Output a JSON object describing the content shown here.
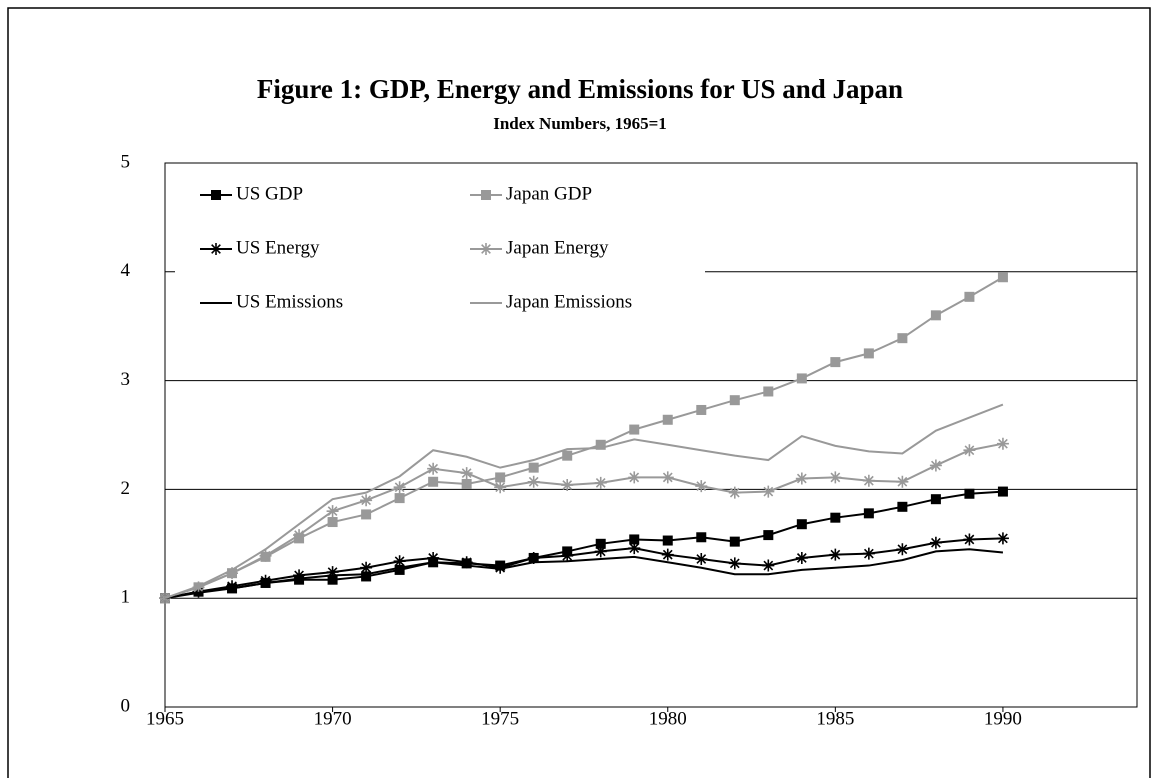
{
  "chart_data": {
    "type": "line",
    "title": "Figure 1: GDP, Energy and Emissions for US and Japan",
    "subtitle": "Index Numbers, 1965=1",
    "x": [
      1965,
      1966,
      1967,
      1968,
      1969,
      1970,
      1971,
      1972,
      1973,
      1974,
      1975,
      1976,
      1977,
      1978,
      1979,
      1980,
      1981,
      1982,
      1983,
      1984,
      1985,
      1986,
      1987,
      1988,
      1989,
      1990
    ],
    "xlim": [
      1965,
      1994
    ],
    "xticks": [
      1965,
      1970,
      1975,
      1980,
      1985,
      1990
    ],
    "ylim": [
      0,
      5
    ],
    "yticks": [
      0,
      1,
      2,
      3,
      4,
      5
    ],
    "grid": true,
    "legend": "top-left",
    "series": [
      {
        "name": "US GDP",
        "color": "#000000",
        "marker": "square",
        "values": [
          1.0,
          1.06,
          1.09,
          1.14,
          1.17,
          1.17,
          1.2,
          1.26,
          1.33,
          1.32,
          1.3,
          1.37,
          1.43,
          1.5,
          1.54,
          1.53,
          1.56,
          1.52,
          1.58,
          1.68,
          1.74,
          1.78,
          1.84,
          1.91,
          1.96,
          1.98
        ]
      },
      {
        "name": "Japan GDP",
        "color": "#999999",
        "marker": "square",
        "values": [
          1.0,
          1.1,
          1.23,
          1.38,
          1.55,
          1.7,
          1.77,
          1.92,
          2.07,
          2.05,
          2.11,
          2.2,
          2.31,
          2.41,
          2.55,
          2.64,
          2.73,
          2.82,
          2.9,
          3.02,
          3.17,
          3.25,
          3.39,
          3.6,
          3.77,
          3.95
        ]
      },
      {
        "name": "US Energy",
        "color": "#000000",
        "marker": "star",
        "values": [
          1.0,
          1.06,
          1.11,
          1.16,
          1.21,
          1.24,
          1.28,
          1.34,
          1.37,
          1.33,
          1.28,
          1.37,
          1.39,
          1.43,
          1.46,
          1.4,
          1.36,
          1.32,
          1.3,
          1.37,
          1.4,
          1.41,
          1.45,
          1.51,
          1.54,
          1.55
        ]
      },
      {
        "name": "Japan Energy",
        "color": "#999999",
        "marker": "star",
        "values": [
          1.0,
          1.1,
          1.23,
          1.39,
          1.58,
          1.8,
          1.9,
          2.02,
          2.19,
          2.15,
          2.02,
          2.07,
          2.04,
          2.06,
          2.11,
          2.11,
          2.03,
          1.97,
          1.98,
          2.1,
          2.11,
          2.08,
          2.07,
          2.22,
          2.36,
          2.42
        ]
      },
      {
        "name": "US Emissions",
        "color": "#000000",
        "marker": "none",
        "values": [
          1.0,
          1.05,
          1.09,
          1.14,
          1.18,
          1.21,
          1.22,
          1.28,
          1.33,
          1.3,
          1.27,
          1.33,
          1.34,
          1.36,
          1.38,
          1.33,
          1.28,
          1.22,
          1.22,
          1.26,
          1.28,
          1.3,
          1.35,
          1.43,
          1.45,
          1.42
        ]
      },
      {
        "name": "Japan Emissions",
        "color": "#999999",
        "marker": "none",
        "values": [
          1.0,
          1.11,
          1.26,
          1.45,
          1.68,
          1.91,
          1.97,
          2.12,
          2.36,
          2.3,
          2.2,
          2.27,
          2.37,
          2.38,
          2.46,
          2.41,
          2.36,
          2.31,
          2.27,
          2.49,
          2.4,
          2.35,
          2.33,
          2.54,
          2.66,
          2.78
        ]
      }
    ]
  }
}
